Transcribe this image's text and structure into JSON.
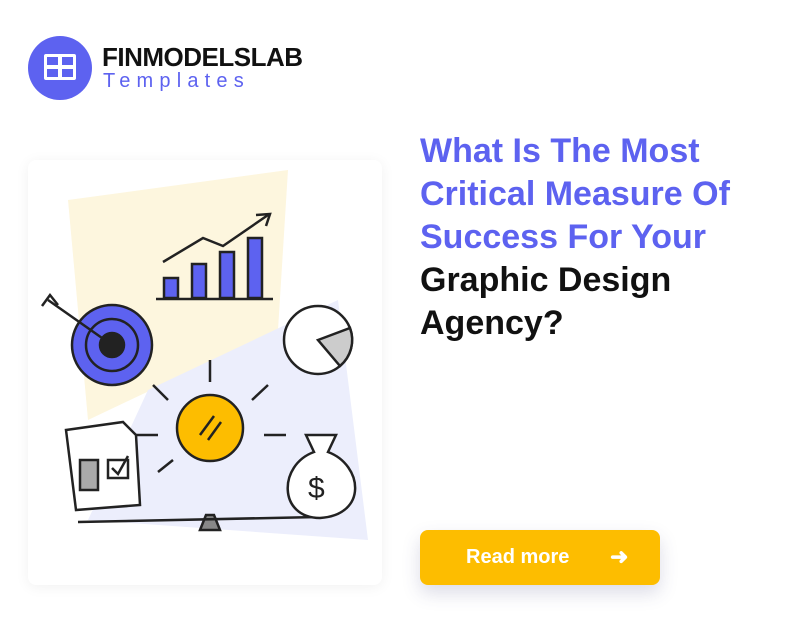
{
  "brand": {
    "name": "FINMODELSLAB",
    "subtitle": "Templates",
    "icon": "grid-icon",
    "color": "#5d62f0"
  },
  "headline": {
    "lines_accent": [
      "What Is The Most",
      "Critical Measure Of",
      "Success For Your"
    ],
    "lines_dark": [
      "Graphic Design",
      "Agency?"
    ],
    "accent_color": "#5d62f0"
  },
  "cta": {
    "label": "Read more",
    "icon": "arrow-right-icon",
    "arrow": "➜",
    "color": "#fdbd00"
  },
  "illustration": {
    "elements": [
      "target-icon",
      "bar-chart-icon",
      "pie-chart-icon",
      "lightbulb-icon",
      "document-icon",
      "money-bag-icon"
    ]
  }
}
